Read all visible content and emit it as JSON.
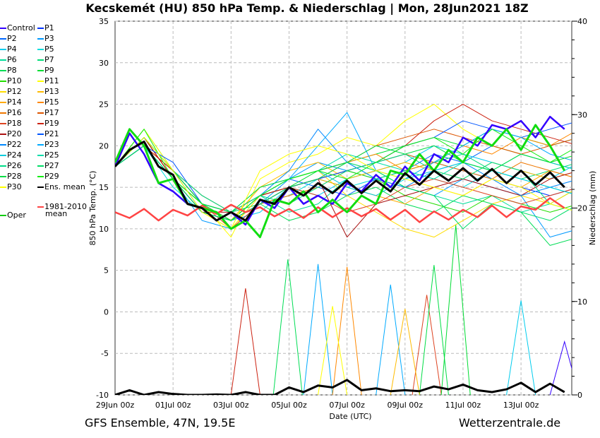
{
  "chart_data": {
    "type": "line",
    "title": "Kecskemét  (HU)  850 hPa Temp. & Niederschlag | Mon, 28Jun2021 18Z",
    "xlabel": "Date (UTC)",
    "ylabel": "850 hPa Temp. (°C)",
    "y2label": "Niederschlag (mm)",
    "xlim_hours": [
      0,
      378
    ],
    "ylim": [
      -10,
      35
    ],
    "y2lim": [
      0,
      40
    ],
    "yticks": [
      "-10",
      "-5",
      "0",
      "5",
      "10",
      "15",
      "20",
      "25",
      "30",
      "35"
    ],
    "y2ticks": [
      "0",
      "10",
      "20",
      "30",
      "40"
    ],
    "xticks": [
      {
        "h": 0,
        "label": "29Jun 00z"
      },
      {
        "h": 48,
        "label": "01Jul 00z"
      },
      {
        "h": 96,
        "label": "03Jul 00z"
      },
      {
        "h": 144,
        "label": "05Jul 00z"
      },
      {
        "h": 192,
        "label": "07Jul 00z"
      },
      {
        "h": 240,
        "label": "09Jul 00z"
      },
      {
        "h": 288,
        "label": "11Jul 00z"
      },
      {
        "h": 336,
        "label": "13Jul 00z"
      }
    ],
    "grid": true,
    "step12_hours": 12,
    "ens_mean": [
      17.5,
      19.5,
      20.5,
      17.5,
      16.5,
      13,
      12.5,
      11,
      12,
      11,
      13.5,
      13,
      15,
      14,
      15.5,
      14.3,
      15.8,
      14.3,
      15.8,
      14.5,
      16.7,
      15.3,
      17,
      15.8,
      17.3,
      15.8,
      17.2,
      15.5,
      17,
      15.3,
      16.8,
      15
    ],
    "climatology": [
      12,
      11.3,
      12.4,
      11,
      12.3,
      11.6,
      12.8,
      11.8,
      12.9,
      12,
      12.6,
      11.5,
      12.4,
      11.3,
      12.6,
      11.4,
      12.5,
      11.5,
      12.4,
      11.1,
      12.3,
      10.8,
      12.1,
      11.1,
      12.3,
      11.4,
      12.8,
      11.4,
      12.7,
      12.3,
      13.7,
      12.5
    ],
    "oper": [
      18,
      22,
      20,
      15.5,
      16,
      13,
      12.5,
      12,
      10,
      11,
      9,
      13.5,
      13,
      14.5,
      12,
      13.5,
      12,
      14,
      13,
      17,
      16.5,
      19,
      17,
      19.5,
      18,
      21,
      20,
      22,
      19.5,
      22.5,
      20,
      17
    ],
    "control": [
      17.5,
      21.5,
      19,
      15.5,
      14.5,
      13,
      12.5,
      11,
      12,
      10.5,
      13.5,
      12.5,
      15,
      13,
      14,
      13,
      15.5,
      14.5,
      16.5,
      15,
      17.5,
      15.8,
      19,
      18,
      21,
      20,
      22.5,
      22,
      23,
      21,
      23.5,
      22
    ],
    "members_daily_step_hours": 24,
    "members": [
      {
        "name": "P1",
        "color": "#0033ff",
        "t": [
          17.5,
          20,
          16,
          12,
          11,
          14,
          15,
          16,
          17,
          18,
          19,
          18,
          17,
          16,
          15,
          14,
          15
        ]
      },
      {
        "name": "P2",
        "color": "#0066ff",
        "t": [
          17.5,
          21,
          17,
          13,
          12,
          14,
          16,
          15,
          14,
          16,
          17,
          19,
          18,
          20,
          19,
          18,
          17
        ]
      },
      {
        "name": "P3",
        "color": "#0099ff",
        "t": [
          17.5,
          20,
          16,
          11,
          10,
          13,
          16,
          18,
          17,
          16,
          15,
          14,
          16,
          15,
          14,
          9,
          10
        ]
      },
      {
        "name": "P4",
        "color": "#00ccee",
        "t": [
          17.5,
          21,
          17,
          13,
          11,
          12,
          15,
          14,
          16,
          17,
          18,
          20,
          19,
          18,
          17,
          16,
          18
        ]
      },
      {
        "name": "P5",
        "color": "#00dddd",
        "t": [
          17.5,
          20,
          15,
          12,
          11,
          13,
          14,
          16,
          15,
          16,
          17,
          16,
          15,
          17,
          16,
          15,
          14
        ]
      },
      {
        "name": "P6",
        "color": "#00dd99",
        "t": [
          17.5,
          21,
          17,
          14,
          12,
          14,
          12,
          13,
          16,
          17,
          15,
          14,
          13,
          14,
          12,
          13,
          15
        ]
      },
      {
        "name": "P7",
        "color": "#00dd77",
        "t": [
          17.5,
          20,
          16,
          13,
          12,
          15,
          16,
          17,
          18,
          16,
          17,
          18,
          19,
          17,
          16,
          17,
          18
        ]
      },
      {
        "name": "P8",
        "color": "#00dd55",
        "t": [
          17.5,
          21,
          16,
          13,
          12,
          13,
          11,
          12,
          14,
          15,
          13,
          12,
          14,
          13,
          12,
          8,
          9
        ]
      },
      {
        "name": "P9",
        "color": "#00dd33",
        "t": [
          17.5,
          22,
          17,
          12,
          11,
          13,
          15,
          17,
          18,
          19,
          20,
          21,
          20,
          22,
          21,
          20,
          21
        ]
      },
      {
        "name": "P10",
        "color": "#22dd00",
        "t": [
          17.5,
          21,
          16,
          12,
          11,
          14,
          15,
          16,
          17,
          16,
          14,
          13,
          12,
          14,
          13,
          12,
          13
        ]
      },
      {
        "name": "P11",
        "color": "#ffff00",
        "t": [
          17.5,
          22,
          17,
          13,
          9,
          16,
          18,
          19,
          21,
          20,
          23,
          25,
          22,
          20,
          19,
          18,
          19
        ]
      },
      {
        "name": "P12",
        "color": "#ffdd00",
        "t": [
          17.5,
          21,
          16,
          12,
          10,
          14,
          16,
          17,
          14,
          12,
          10,
          9,
          11,
          13,
          14,
          13,
          15
        ]
      },
      {
        "name": "P13",
        "color": "#ffbb00",
        "t": [
          17.5,
          20,
          17,
          13,
          11,
          15,
          17,
          18,
          16,
          17,
          18,
          17,
          16,
          18,
          17,
          16,
          17
        ]
      },
      {
        "name": "P14",
        "color": "#ffaa00",
        "t": [
          17.5,
          21,
          16,
          12,
          11,
          14,
          15,
          16,
          15,
          14,
          13,
          15,
          14,
          16,
          15,
          17,
          16
        ]
      },
      {
        "name": "P15",
        "color": "#ff8800",
        "t": [
          17.5,
          20,
          17,
          13,
          12,
          14,
          16,
          17,
          18,
          19,
          17,
          18,
          20,
          19,
          21,
          20,
          22
        ]
      },
      {
        "name": "P16",
        "color": "#ee7700",
        "t": [
          17.5,
          21,
          16,
          12,
          11,
          13,
          14,
          15,
          17,
          18,
          19,
          18,
          17,
          16,
          18,
          17,
          16
        ]
      },
      {
        "name": "P17",
        "color": "#dd5500",
        "t": [
          17.5,
          20,
          17,
          14,
          12,
          14,
          15,
          16,
          18,
          20,
          21,
          22,
          21,
          20,
          19,
          20,
          21
        ]
      },
      {
        "name": "P18",
        "color": "#dd4422",
        "t": [
          17.5,
          21,
          16,
          13,
          10,
          13,
          15,
          14,
          12,
          13,
          15,
          16,
          15,
          14,
          13,
          14,
          15
        ]
      },
      {
        "name": "P19",
        "color": "#cc2211",
        "t": [
          17.5,
          20,
          17,
          13,
          11,
          13,
          15,
          16,
          17,
          18,
          20,
          23,
          25,
          23,
          22,
          21,
          20
        ]
      },
      {
        "name": "P20",
        "color": "#aa1111",
        "t": [
          17.5,
          21,
          16,
          12,
          12,
          14,
          15,
          16,
          9,
          13,
          14,
          15,
          16,
          15,
          14,
          16,
          17
        ]
      },
      {
        "name": "P21",
        "color": "#0055ff",
        "t": [
          17.5,
          20,
          18,
          13,
          11,
          13,
          15,
          16,
          17,
          18,
          20,
          21,
          23,
          22,
          21,
          22,
          23
        ]
      },
      {
        "name": "P22",
        "color": "#0088ff",
        "t": [
          17.5,
          21,
          17,
          12,
          11,
          14,
          17,
          22,
          18,
          16,
          15,
          17,
          18,
          16,
          14,
          15,
          16
        ]
      },
      {
        "name": "P23",
        "color": "#00aaff",
        "t": [
          17.5,
          20,
          16,
          12,
          11,
          14,
          16,
          20,
          24,
          17,
          16,
          18,
          20,
          22,
          21,
          19,
          18
        ]
      },
      {
        "name": "P24",
        "color": "#00ccdd",
        "t": [
          17.5,
          21,
          17,
          13,
          12,
          14,
          16,
          17,
          15,
          14,
          16,
          17,
          18,
          17,
          16,
          15,
          14
        ]
      },
      {
        "name": "P25",
        "color": "#00ddaa",
        "t": [
          17.5,
          20,
          16,
          13,
          11,
          14,
          16,
          17,
          19,
          18,
          17,
          16,
          18,
          17,
          19,
          18,
          17
        ]
      },
      {
        "name": "P26",
        "color": "#00dd88",
        "t": [
          17.5,
          21,
          17,
          14,
          12,
          14,
          13,
          15,
          17,
          18,
          19,
          17,
          16,
          18,
          17,
          13,
          12
        ]
      },
      {
        "name": "P27",
        "color": "#00dd66",
        "t": [
          17.5,
          20,
          16,
          12,
          11,
          13,
          15,
          16,
          18,
          17,
          15,
          14,
          10,
          13,
          12,
          11,
          13
        ]
      },
      {
        "name": "P28",
        "color": "#00dd44",
        "t": [
          17.5,
          21,
          17,
          13,
          12,
          15,
          16,
          17,
          18,
          20,
          19,
          20,
          18,
          17,
          19,
          18,
          19
        ]
      },
      {
        "name": "P29",
        "color": "#11ee11",
        "t": [
          17.5,
          22,
          16,
          13,
          11,
          14,
          16,
          17,
          16,
          18,
          20,
          21,
          19,
          22,
          20,
          18,
          20
        ]
      },
      {
        "name": "P30",
        "color": "#ffff00",
        "t": [
          17.5,
          21,
          17,
          12,
          10,
          17,
          19,
          20,
          19,
          17,
          16,
          15,
          14,
          16,
          15,
          13,
          12
        ]
      }
    ],
    "precip_ens_mean": [
      0,
      0.5,
      0,
      0.3,
      0.1,
      0,
      0,
      0.05,
      0,
      0.3,
      0,
      0,
      0.8,
      0.3,
      1,
      0.8,
      1.6,
      0.5,
      0.7,
      0.4,
      0.5,
      0.4,
      0.9,
      0.6,
      1.1,
      0.5,
      0.3,
      0.6,
      1.3,
      0.3,
      1.2,
      0.3
    ],
    "precip_spikes": [
      {
        "member": "P8",
        "color": "#00dd55",
        "h": 143,
        "mm": 14.5
      },
      {
        "member": "P23",
        "color": "#00aaff",
        "h": 168,
        "mm": 14
      },
      {
        "member": "P19",
        "color": "#cc2211",
        "h": 108,
        "mm": 11.4
      },
      {
        "member": "P15",
        "color": "#ff8800",
        "h": 192,
        "mm": 13.7
      },
      {
        "member": "P23",
        "color": "#00aaff",
        "h": 228,
        "mm": 11.8
      },
      {
        "member": "P18",
        "color": "#dd4422",
        "h": 258,
        "mm": 10.7
      },
      {
        "member": "P28",
        "color": "#00dd44",
        "h": 264,
        "mm": 13.9
      },
      {
        "member": "P9",
        "color": "#00dd33",
        "h": 282,
        "mm": 18.2
      },
      {
        "member": "P4",
        "color": "#00ccee",
        "h": 336,
        "mm": 10.1
      },
      {
        "member": "P13",
        "color": "#ffbb00",
        "h": 240,
        "mm": 9.2
      },
      {
        "member": "P11",
        "color": "#ffff00",
        "h": 180,
        "mm": 9.5
      },
      {
        "member": "Control",
        "color": "#3300ff",
        "h": 372,
        "mm": 5.7
      }
    ],
    "legend": {
      "col1": [
        "Control",
        "P2",
        "P4",
        "P6",
        "P8",
        "P10",
        "P12",
        "P14",
        "P16",
        "P18",
        "P20",
        "P22",
        "P24",
        "P26",
        "P28",
        "P30"
      ],
      "col1_colors": [
        "#3300ff",
        "#0066ff",
        "#00ccee",
        "#00dd99",
        "#00dd55",
        "#22dd00",
        "#ffdd00",
        "#ffaa00",
        "#ee7700",
        "#dd4422",
        "#aa1111",
        "#0088ff",
        "#00ccdd",
        "#00dd88",
        "#00dd44",
        "#ffff00"
      ],
      "col2": [
        "P1",
        "P3",
        "P5",
        "P7",
        "P9",
        "P11",
        "P13",
        "P15",
        "P17",
        "P19",
        "P21",
        "P23",
        "P25",
        "P27",
        "P29",
        "Ens. mean"
      ],
      "col2_colors": [
        "#0033ff",
        "#0099ff",
        "#00dddd",
        "#00dd77",
        "#00dd33",
        "#ffff00",
        "#ffbb00",
        "#ff8800",
        "#dd5500",
        "#cc2211",
        "#0055ff",
        "#00aaff",
        "#00ddaa",
        "#00dd66",
        "#11ee11",
        "#000000"
      ],
      "oper": "Oper",
      "oper_color": "#11cc11",
      "clim_line1": "1981-2010",
      "clim_line2": "mean",
      "clim_color": "#ff4444"
    }
  },
  "footer": {
    "left": "GFS Ensemble, 47N, 19.5E",
    "right": "Wetterzentrale.de"
  }
}
